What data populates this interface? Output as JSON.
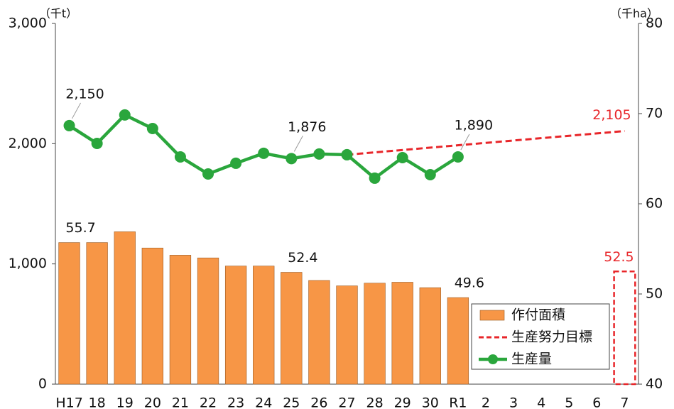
{
  "chart_data": {
    "type": "combo",
    "y_unit": "（千t）",
    "y2_unit": "（千ha）",
    "categories": [
      "H17",
      "18",
      "19",
      "20",
      "21",
      "22",
      "23",
      "24",
      "25",
      "26",
      "27",
      "28",
      "29",
      "30",
      "R1",
      "2",
      "3",
      "4",
      "5",
      "6",
      "7"
    ],
    "ylim": [
      0,
      3000
    ],
    "yticks": [
      {
        "value": 0,
        "label": "0"
      },
      {
        "value": 1000,
        "label": "1,000"
      },
      {
        "value": 2000,
        "label": "2,000"
      },
      {
        "value": 3000,
        "label": "3,000"
      }
    ],
    "y2lim": [
      40,
      80
    ],
    "y2ticks": [
      40,
      50,
      60,
      70,
      80
    ],
    "legend": "lower right",
    "series": [
      {
        "name": "作付面積",
        "type": "bar",
        "axis": "y2",
        "color": "#f79646",
        "values": [
          55.7,
          55.7,
          56.9,
          55.1,
          54.3,
          54.0,
          53.1,
          53.1,
          52.4,
          51.5,
          50.9,
          51.2,
          51.3,
          50.7,
          49.6,
          null,
          null,
          null,
          null,
          null,
          null
        ],
        "value_labels": [
          "55.7",
          null,
          null,
          null,
          null,
          null,
          null,
          null,
          "52.4",
          null,
          null,
          null,
          null,
          null,
          "49.6",
          null,
          null,
          null,
          null,
          null,
          null
        ]
      },
      {
        "name": "生産努力目標",
        "type": "line",
        "axis": "y",
        "color": "#e8262a",
        "dashed": true,
        "connect_gaps": true,
        "values": [
          null,
          null,
          null,
          null,
          null,
          null,
          null,
          null,
          null,
          null,
          1908,
          null,
          null,
          null,
          null,
          null,
          null,
          null,
          null,
          null,
          2105
        ],
        "value_labels": [
          null,
          null,
          null,
          null,
          null,
          null,
          null,
          null,
          null,
          null,
          null,
          null,
          null,
          null,
          null,
          null,
          null,
          null,
          null,
          null,
          "2,105"
        ]
      },
      {
        "name": "生産量",
        "type": "line",
        "axis": "y",
        "color": "#2aa63c",
        "markers": true,
        "values": [
          2150,
          2002,
          2239,
          2126,
          1890,
          1748,
          1837,
          1920,
          1876,
          1914,
          1908,
          1713,
          1884,
          1742,
          1890,
          null,
          null,
          null,
          null,
          null,
          null
        ],
        "value_labels": [
          "2,150",
          null,
          null,
          null,
          null,
          null,
          null,
          null,
          "1,876",
          null,
          null,
          null,
          null,
          null,
          "1,890",
          null,
          null,
          null,
          null,
          null,
          null
        ]
      }
    ],
    "target_area": {
      "type": "bar",
      "axis": "y2",
      "color": "#e8262a",
      "dashed": true,
      "values": [
        null,
        null,
        null,
        null,
        null,
        null,
        null,
        null,
        null,
        null,
        null,
        null,
        null,
        null,
        null,
        null,
        null,
        null,
        null,
        null,
        52.5
      ],
      "value_labels": [
        null,
        null,
        null,
        null,
        null,
        null,
        null,
        null,
        null,
        null,
        null,
        null,
        null,
        null,
        null,
        null,
        null,
        null,
        null,
        null,
        "52.5"
      ]
    }
  }
}
